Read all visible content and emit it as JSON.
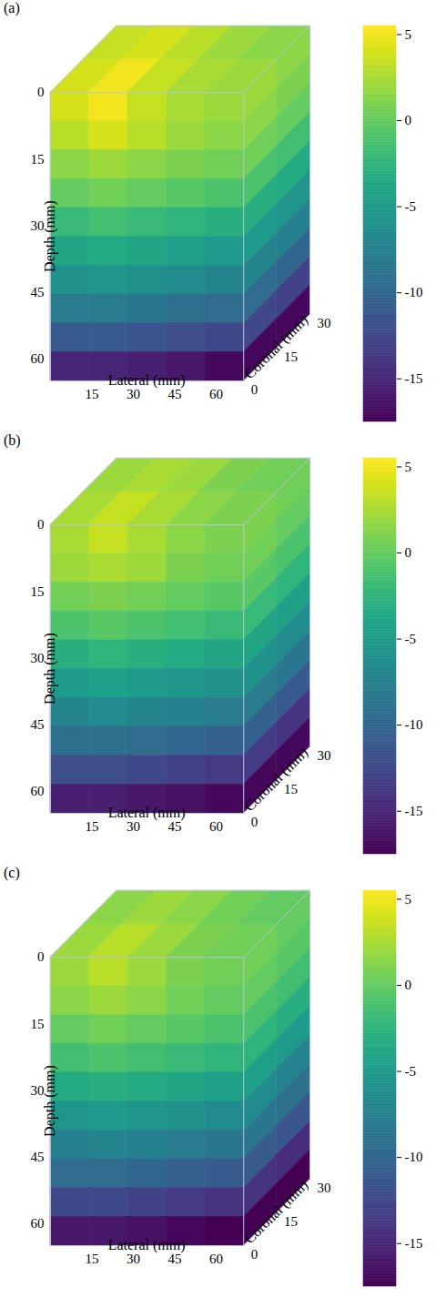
{
  "chart_data": [
    {
      "type": "heatmap",
      "title": "(a)",
      "x_label": "Lateral (mm)",
      "y_label": "Depth (mm)",
      "z_label": "Coronal (mm)",
      "xlim": [
        0,
        70
      ],
      "xticks": [
        15,
        30,
        45,
        60
      ],
      "ylim": [
        0,
        65
      ],
      "yticks": [
        0,
        15,
        30,
        45,
        60
      ],
      "zlim": [
        0,
        30
      ],
      "zticks": [
        0,
        15,
        30
      ],
      "cells": {
        "lateral_edges": [
          0,
          14,
          28,
          42,
          56,
          70
        ],
        "depth_edges": [
          0,
          6.5,
          13,
          19.5,
          26,
          32.5,
          39,
          45.5,
          52,
          58.5,
          65
        ],
        "coronal_edges": [
          0,
          15,
          30
        ],
        "front": [
          [
            4,
            5,
            3.5,
            2.5,
            2
          ],
          [
            3,
            4,
            3,
            2,
            1.5
          ],
          [
            1.5,
            2,
            1.5,
            1,
            0.5
          ],
          [
            0,
            0.5,
            0,
            -0.5,
            -1
          ],
          [
            -2,
            -1.5,
            -2,
            -2.5,
            -3
          ],
          [
            -4,
            -3.5,
            -4,
            -4.5,
            -5
          ],
          [
            -6,
            -5.5,
            -6,
            -6.5,
            -7
          ],
          [
            -8,
            -8,
            -8.5,
            -9,
            -9.5
          ],
          [
            -11,
            -11,
            -11.5,
            -12,
            -12.5
          ],
          [
            -15,
            -15,
            -15.5,
            -16,
            -17
          ]
        ],
        "side": [
          [
            2,
            1.5
          ],
          [
            1.5,
            1
          ],
          [
            0.5,
            0
          ],
          [
            -1,
            -1.5
          ],
          [
            -3,
            -3.5
          ],
          [
            -5,
            -5.5
          ],
          [
            -7,
            -7.5
          ],
          [
            -9.5,
            -10
          ],
          [
            -12.5,
            -13
          ],
          [
            -17,
            -17
          ]
        ],
        "top": [
          [
            4,
            5,
            3.5,
            2.5,
            2
          ],
          [
            3.5,
            4,
            3,
            2,
            1.5
          ]
        ]
      },
      "colorbar": {
        "range": [
          -17.5,
          5.5
        ],
        "ticks": [
          -15,
          -10,
          -5,
          0,
          5
        ]
      }
    },
    {
      "type": "heatmap",
      "title": "(b)",
      "x_label": "Lateral (mm)",
      "y_label": "Depth (mm)",
      "z_label": "Coronal (mm)",
      "xlim": [
        0,
        70
      ],
      "xticks": [
        15,
        30,
        45,
        60
      ],
      "ylim": [
        0,
        65
      ],
      "yticks": [
        0,
        15,
        30,
        45,
        60
      ],
      "zlim": [
        0,
        30
      ],
      "zticks": [
        0,
        15,
        30
      ],
      "cells": {
        "lateral_edges": [
          0,
          14,
          28,
          42,
          56,
          70
        ],
        "depth_edges": [
          0,
          6.5,
          13,
          19.5,
          26,
          32.5,
          39,
          45.5,
          52,
          58.5,
          65
        ],
        "coronal_edges": [
          0,
          15,
          30
        ],
        "front": [
          [
            2.5,
            3.5,
            2.5,
            1.5,
            1
          ],
          [
            2,
            2.5,
            2,
            1,
            0.5
          ],
          [
            0.5,
            1,
            0.5,
            0,
            -0.5
          ],
          [
            -1,
            -0.5,
            -1,
            -1.5,
            -2
          ],
          [
            -3,
            -2.5,
            -3,
            -3.5,
            -4
          ],
          [
            -5,
            -4.5,
            -5,
            -5.5,
            -6
          ],
          [
            -7,
            -6.5,
            -7,
            -7.5,
            -8
          ],
          [
            -9,
            -9,
            -9.5,
            -10,
            -10.5
          ],
          [
            -12,
            -12,
            -12.5,
            -13,
            -13.5
          ],
          [
            -15.5,
            -15.5,
            -16,
            -16.5,
            -17
          ]
        ],
        "side": [
          [
            1,
            0.5
          ],
          [
            0.5,
            0
          ],
          [
            -0.5,
            -1
          ],
          [
            -2,
            -2.5
          ],
          [
            -4,
            -4.5
          ],
          [
            -6,
            -6.5
          ],
          [
            -8,
            -8.5
          ],
          [
            -10.5,
            -11
          ],
          [
            -13.5,
            -14
          ],
          [
            -17,
            -17
          ]
        ],
        "top": [
          [
            2.5,
            3.5,
            2.5,
            1.5,
            1
          ],
          [
            2,
            2.5,
            2,
            1,
            0.5
          ]
        ]
      },
      "colorbar": {
        "range": [
          -17.5,
          5.5
        ],
        "ticks": [
          -15,
          -10,
          -5,
          0,
          5
        ]
      }
    },
    {
      "type": "heatmap",
      "title": "(c)",
      "x_label": "Lateral (mm)",
      "y_label": "Depth (mm)",
      "z_label": "Coronal (mm)",
      "xlim": [
        0,
        70
      ],
      "xticks": [
        15,
        30,
        45,
        60
      ],
      "ylim": [
        0,
        65
      ],
      "yticks": [
        0,
        15,
        30,
        45,
        60
      ],
      "zlim": [
        0,
        30
      ],
      "zticks": [
        0,
        15,
        30
      ],
      "cells": {
        "lateral_edges": [
          0,
          14,
          28,
          42,
          56,
          70
        ],
        "depth_edges": [
          0,
          6.5,
          13,
          19.5,
          26,
          32.5,
          39,
          45.5,
          52,
          58.5,
          65
        ],
        "coronal_edges": [
          0,
          15,
          30
        ],
        "front": [
          [
            2,
            3,
            2,
            1,
            0.5
          ],
          [
            1.5,
            2,
            1.5,
            0.5,
            0
          ],
          [
            0,
            0.5,
            0,
            -0.5,
            -1
          ],
          [
            -1.5,
            -1,
            -1.5,
            -2,
            -2.5
          ],
          [
            -3.5,
            -3,
            -3.5,
            -4,
            -4.5
          ],
          [
            -5.5,
            -5,
            -5.5,
            -6,
            -6.5
          ],
          [
            -7.5,
            -7,
            -7.5,
            -8,
            -8.5
          ],
          [
            -9.5,
            -9.5,
            -10,
            -10.5,
            -11
          ],
          [
            -12.5,
            -12.5,
            -13,
            -13.5,
            -14
          ],
          [
            -16,
            -16,
            -16.5,
            -17,
            -17.5
          ]
        ],
        "side": [
          [
            0.5,
            0
          ],
          [
            0,
            -0.5
          ],
          [
            -1,
            -1.5
          ],
          [
            -2.5,
            -3
          ],
          [
            -4.5,
            -5
          ],
          [
            -6.5,
            -7
          ],
          [
            -8.5,
            -9
          ],
          [
            -11,
            -11.5
          ],
          [
            -14,
            -14.5
          ],
          [
            -17.5,
            -17.5
          ]
        ],
        "top": [
          [
            2,
            3,
            2,
            1,
            0.5
          ],
          [
            1.5,
            2,
            1.5,
            0.5,
            0
          ]
        ]
      },
      "colorbar": {
        "range": [
          -17.5,
          5.5
        ],
        "ticks": [
          -15,
          -10,
          -5,
          0,
          5
        ]
      }
    }
  ]
}
